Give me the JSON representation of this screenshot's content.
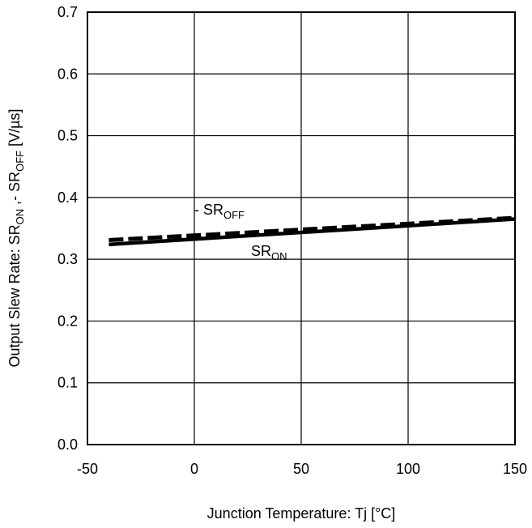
{
  "chart_data": {
    "type": "line",
    "title": "",
    "xlabel": "Junction Temperature: Tj [°C]",
    "ylabel": {
      "parts": [
        {
          "text": "Output Slew Rate: SR",
          "sub": false
        },
        {
          "text": "ON",
          "sub": true
        },
        {
          "text": " ,- SR",
          "sub": false
        },
        {
          "text": "OFF",
          "sub": true
        },
        {
          "text": " [V/µs]",
          "sub": false
        }
      ]
    },
    "xlim": [
      -50,
      150
    ],
    "ylim": [
      0.0,
      0.7
    ],
    "xticks": [
      "-50",
      "0",
      "50",
      "100",
      "150"
    ],
    "yticks": [
      "0.0",
      "0.1",
      "0.2",
      "0.3",
      "0.4",
      "0.5",
      "0.6",
      "0.7"
    ],
    "grid": true,
    "series": [
      {
        "name": "- SR",
        "name_sub": "OFF",
        "style": "dashed",
        "color": "#000000",
        "x": [
          -40,
          150
        ],
        "y": [
          0.331,
          0.367
        ]
      },
      {
        "name": "SR",
        "name_sub": "ON",
        "style": "solid",
        "color": "#000000",
        "x": [
          -40,
          150
        ],
        "y": [
          0.324,
          0.365
        ]
      }
    ]
  }
}
